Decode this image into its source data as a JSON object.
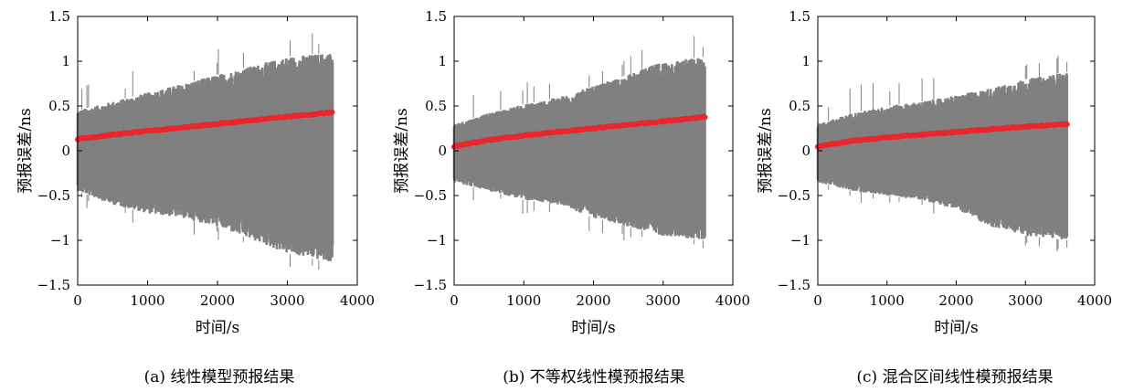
{
  "figure": {
    "colors": {
      "band": "#808080",
      "trend": "#e8262b",
      "axis": "#000000"
    }
  },
  "chart_data": [
    {
      "type": "line",
      "caption": "(a) 线性模型预报结果",
      "xlabel": "时间/s",
      "ylabel": "预报误差/ns",
      "xlim": [
        0,
        4000
      ],
      "ylim": [
        -1.5,
        1.5
      ],
      "xticks": [
        "0",
        "1000",
        "2000",
        "3000",
        "4000"
      ],
      "yticks": [
        "1.5",
        "1",
        "0.5",
        "0",
        "−0.5",
        "−1",
        "−1.5"
      ],
      "grid": false,
      "x": [
        0,
        500,
        1000,
        1500,
        2000,
        2500,
        3000,
        3650
      ],
      "series": [
        {
          "role": "error-band-upper",
          "values": [
            0.45,
            0.55,
            0.65,
            0.75,
            0.85,
            0.95,
            1.05,
            1.1
          ]
        },
        {
          "role": "error-band-lower",
          "values": [
            -0.45,
            -0.6,
            -0.7,
            -0.75,
            -0.85,
            -1.0,
            -1.15,
            -1.25
          ]
        },
        {
          "role": "mean-error",
          "values": [
            0.13,
            0.18,
            0.22,
            0.26,
            0.3,
            0.34,
            0.38,
            0.43
          ]
        }
      ]
    },
    {
      "type": "line",
      "caption": "(b) 不等权线性模预报结果",
      "xlabel": "时间/s",
      "ylabel": "预报误差/ns",
      "xlim": [
        0,
        4000
      ],
      "ylim": [
        -1.5,
        1.5
      ],
      "xticks": [
        "0",
        "1000",
        "2000",
        "3000",
        "4000"
      ],
      "yticks": [
        "1.5",
        "1",
        "0.5",
        "0",
        "−0.5",
        "−1",
        "−1.5"
      ],
      "grid": false,
      "x": [
        0,
        500,
        1000,
        1500,
        2000,
        2500,
        3000,
        3600
      ],
      "series": [
        {
          "role": "error-band-upper",
          "values": [
            0.3,
            0.42,
            0.52,
            0.6,
            0.72,
            0.85,
            1.0,
            1.05
          ]
        },
        {
          "role": "error-band-lower",
          "values": [
            -0.35,
            -0.45,
            -0.55,
            -0.6,
            -0.75,
            -0.85,
            -0.95,
            -1.0
          ]
        },
        {
          "role": "mean-error",
          "values": [
            0.05,
            0.12,
            0.17,
            0.21,
            0.25,
            0.29,
            0.33,
            0.38
          ]
        }
      ]
    },
    {
      "type": "line",
      "caption": "(c) 混合区间线性模预报结果",
      "xlabel": "时间/s",
      "ylabel": "预报误差/ns",
      "xlim": [
        0,
        4000
      ],
      "ylim": [
        -1.5,
        1.5
      ],
      "xticks": [
        "0",
        "1000",
        "2000",
        "3000",
        "4000"
      ],
      "yticks": [
        "1.5",
        "1",
        "0.5",
        "0",
        "−0.5",
        "−1",
        "−1.5"
      ],
      "grid": false,
      "x": [
        0,
        500,
        1000,
        1500,
        2000,
        2500,
        3000,
        3600
      ],
      "series": [
        {
          "role": "error-band-upper",
          "values": [
            0.3,
            0.42,
            0.5,
            0.55,
            0.62,
            0.7,
            0.8,
            0.88
          ]
        },
        {
          "role": "error-band-lower",
          "values": [
            -0.35,
            -0.45,
            -0.5,
            -0.55,
            -0.65,
            -0.85,
            -0.95,
            -1.0
          ]
        },
        {
          "role": "mean-error",
          "values": [
            0.05,
            0.11,
            0.15,
            0.18,
            0.21,
            0.24,
            0.27,
            0.3
          ]
        }
      ]
    }
  ]
}
